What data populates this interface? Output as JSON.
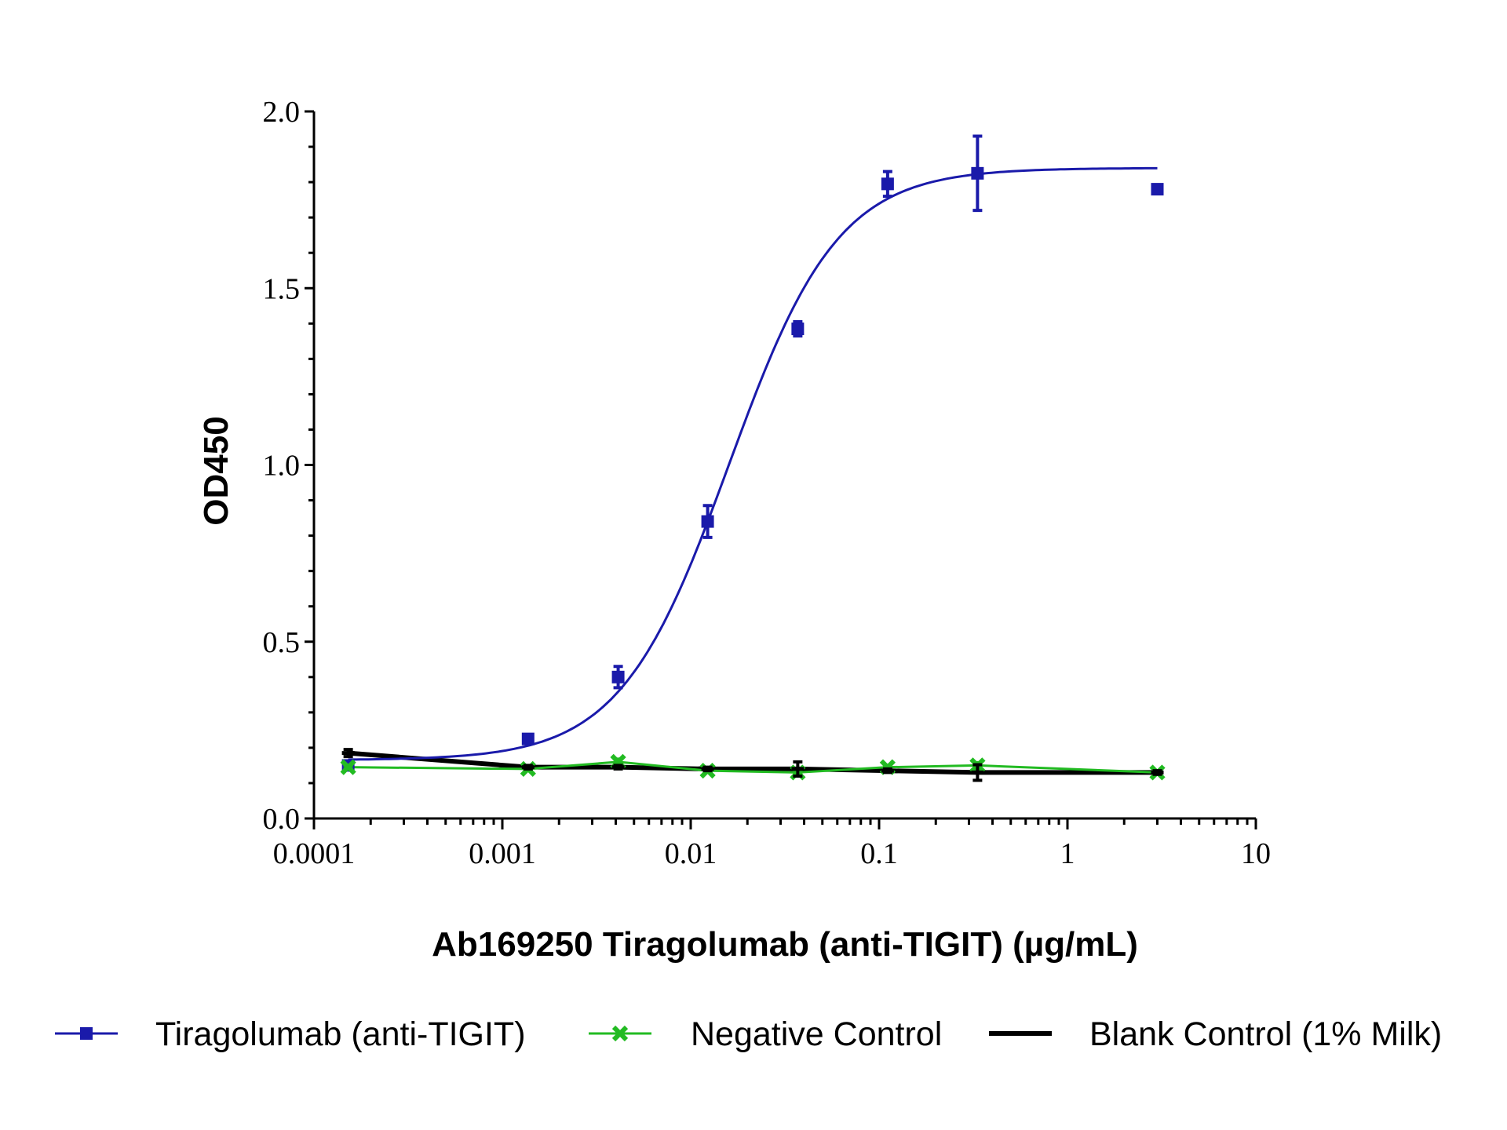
{
  "chart_data": {
    "type": "scatter",
    "title": "",
    "xlabel": "Ab169250 Tiragolumab (anti-TIGIT) (µg/mL)",
    "ylabel": "OD450",
    "xscale": "log",
    "xlim": [
      0.0001,
      10
    ],
    "ylim": [
      0,
      2.0
    ],
    "xticks": [
      "0.0001",
      "0.001",
      "0.01",
      "0.1",
      "1",
      "10"
    ],
    "yticks": [
      "0.0",
      "0.5",
      "1.0",
      "1.5",
      "2.0"
    ],
    "grid": false,
    "legend_placement": "bottom",
    "x": [
      0.000152,
      0.00137,
      0.00412,
      0.0123,
      0.037,
      0.111,
      0.333,
      3
    ],
    "series": [
      {
        "name": "Tiragolumab (anti-TIGIT)",
        "color": "#1a1aaa",
        "marker": "square",
        "values": [
          0.15,
          0.225,
          0.4,
          0.84,
          1.385,
          1.795,
          1.825,
          1.78
        ],
        "errors": [
          0.005,
          0.008,
          0.03,
          0.045,
          0.02,
          0.035,
          0.105,
          0.01
        ],
        "fit": "sigmoidal"
      },
      {
        "name": "Negative Control",
        "color": "#22bb22",
        "marker": "x",
        "values": [
          0.145,
          0.14,
          0.16,
          0.135,
          0.13,
          0.145,
          0.15,
          0.13
        ],
        "errors": [
          0.005,
          0.005,
          0.008,
          0.005,
          0.005,
          0.005,
          0.008,
          0.005
        ]
      },
      {
        "name": "Blank Control (1% Milk)",
        "color": "#000000",
        "marker": "dash",
        "values": [
          0.185,
          0.145,
          0.145,
          0.14,
          0.14,
          0.135,
          0.13,
          0.13
        ],
        "errors": [
          0.01,
          0.005,
          0.005,
          0.005,
          0.02,
          0.005,
          0.022,
          0.005
        ]
      }
    ]
  }
}
